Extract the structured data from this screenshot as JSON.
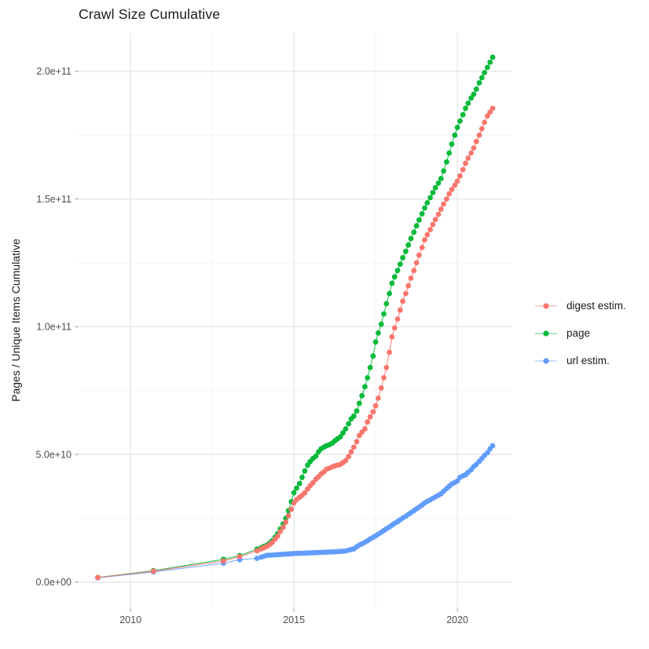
{
  "chart_data": {
    "type": "scatter",
    "title": "Crawl Size Cumulative",
    "xlabel": "",
    "ylabel": "Pages / Unique Items Cumulative",
    "legend_position": "right",
    "grid": true,
    "value_unit": "items x 1e9 (y values below are billions)",
    "x_domain": [
      2008.41,
      2021.68
    ],
    "y_domain_e9": [
      -10.2,
      215
    ],
    "x_ticks": [
      {
        "value": 2010,
        "label": "2010"
      },
      {
        "value": 2015,
        "label": "2015"
      },
      {
        "value": 2020,
        "label": "2020"
      }
    ],
    "x_minor_ticks": [
      2012.5,
      2017.5
    ],
    "y_ticks": [
      {
        "value_e9": 0,
        "label": "0.0e+00"
      },
      {
        "value_e9": 50,
        "label": "5.0e+10"
      },
      {
        "value_e9": 100,
        "label": "1.0e+11"
      },
      {
        "value_e9": 150,
        "label": "1.5e+11"
      },
      {
        "value_e9": 200,
        "label": "2.0e+11"
      }
    ],
    "y_minor_ticks_e9": [
      25,
      75,
      125,
      175
    ],
    "series": [
      {
        "name": "digest estim.",
        "color": "#F8766D",
        "points": [
          [
            2009.0,
            1.8
          ],
          [
            2010.7,
            4.3
          ],
          [
            2012.84,
            8.3
          ],
          [
            2013.34,
            10.0
          ],
          [
            2013.87,
            12.3
          ],
          [
            2014.0,
            13.0
          ],
          [
            2014.08,
            13.5
          ],
          [
            2014.17,
            14.0
          ],
          [
            2014.25,
            14.7
          ],
          [
            2014.33,
            15.5
          ],
          [
            2014.42,
            16.8
          ],
          [
            2014.5,
            18.0
          ],
          [
            2014.58,
            19.8
          ],
          [
            2014.67,
            21.5
          ],
          [
            2014.75,
            23.5
          ],
          [
            2014.83,
            26.0
          ],
          [
            2014.92,
            28.5
          ],
          [
            2015.0,
            31.0
          ],
          [
            2015.08,
            32.3
          ],
          [
            2015.17,
            33.2
          ],
          [
            2015.25,
            34.0
          ],
          [
            2015.33,
            35.0
          ],
          [
            2015.42,
            36.5
          ],
          [
            2015.5,
            37.8
          ],
          [
            2015.58,
            38.9
          ],
          [
            2015.67,
            40.3
          ],
          [
            2015.75,
            41.2
          ],
          [
            2015.83,
            42.4
          ],
          [
            2015.92,
            43.2
          ],
          [
            2016.0,
            44.2
          ],
          [
            2016.08,
            44.6
          ],
          [
            2016.17,
            45.1
          ],
          [
            2016.25,
            45.5
          ],
          [
            2016.33,
            45.8
          ],
          [
            2016.42,
            46.1
          ],
          [
            2016.5,
            46.8
          ],
          [
            2016.58,
            47.6
          ],
          [
            2016.67,
            49.2
          ],
          [
            2016.75,
            51.0
          ],
          [
            2016.83,
            52.8
          ],
          [
            2016.92,
            55.0
          ],
          [
            2017.0,
            57.4
          ],
          [
            2017.08,
            58.7
          ],
          [
            2017.17,
            60.0
          ],
          [
            2017.25,
            62.7
          ],
          [
            2017.33,
            64.7
          ],
          [
            2017.42,
            66.7
          ],
          [
            2017.5,
            69.0
          ],
          [
            2017.58,
            72.0
          ],
          [
            2017.67,
            76.0
          ],
          [
            2017.75,
            80.0
          ],
          [
            2017.83,
            84.0
          ],
          [
            2017.92,
            90.0
          ],
          [
            2018.0,
            96.0
          ],
          [
            2018.08,
            99.5
          ],
          [
            2018.17,
            103.0
          ],
          [
            2018.25,
            106.5
          ],
          [
            2018.33,
            110.0
          ],
          [
            2018.42,
            113.0
          ],
          [
            2018.5,
            116.0
          ],
          [
            2018.58,
            119.0
          ],
          [
            2018.67,
            122.0
          ],
          [
            2018.75,
            125.0
          ],
          [
            2018.83,
            128.0
          ],
          [
            2018.92,
            131.0
          ],
          [
            2019.0,
            134.0
          ],
          [
            2019.08,
            136.0
          ],
          [
            2019.17,
            138.0
          ],
          [
            2019.25,
            140.0
          ],
          [
            2019.33,
            142.0
          ],
          [
            2019.42,
            144.0
          ],
          [
            2019.5,
            146.0
          ],
          [
            2019.58,
            148.0
          ],
          [
            2019.67,
            150.0
          ],
          [
            2019.75,
            152.0
          ],
          [
            2019.83,
            153.7
          ],
          [
            2019.92,
            155.4
          ],
          [
            2020.0,
            157.0
          ],
          [
            2020.08,
            159.0
          ],
          [
            2020.17,
            161.5
          ],
          [
            2020.25,
            164.0
          ],
          [
            2020.33,
            166.0
          ],
          [
            2020.42,
            168.0
          ],
          [
            2020.5,
            170.0
          ],
          [
            2020.58,
            172.5
          ],
          [
            2020.67,
            175.0
          ],
          [
            2020.75,
            177.5
          ],
          [
            2020.83,
            180.0
          ],
          [
            2020.92,
            182.5
          ],
          [
            2021.0,
            184.0
          ],
          [
            2021.08,
            185.5
          ]
        ]
      },
      {
        "name": "page",
        "color": "#00BA38",
        "points": [
          [
            2009.0,
            1.8
          ],
          [
            2010.7,
            4.5
          ],
          [
            2012.84,
            8.9
          ],
          [
            2013.34,
            10.4
          ],
          [
            2013.87,
            12.9
          ],
          [
            2014.0,
            13.5
          ],
          [
            2014.08,
            14.0
          ],
          [
            2014.17,
            14.5
          ],
          [
            2014.25,
            15.2
          ],
          [
            2014.33,
            16.2
          ],
          [
            2014.42,
            17.6
          ],
          [
            2014.5,
            19.0
          ],
          [
            2014.58,
            20.8
          ],
          [
            2014.67,
            22.8
          ],
          [
            2014.75,
            25.0
          ],
          [
            2014.83,
            28.0
          ],
          [
            2014.92,
            31.5
          ],
          [
            2015.0,
            35.0
          ],
          [
            2015.08,
            36.8
          ],
          [
            2015.17,
            38.6
          ],
          [
            2015.25,
            41.0
          ],
          [
            2015.33,
            43.5
          ],
          [
            2015.42,
            45.8
          ],
          [
            2015.5,
            47.2
          ],
          [
            2015.58,
            48.4
          ],
          [
            2015.67,
            49.3
          ],
          [
            2015.75,
            51.0
          ],
          [
            2015.83,
            52.2
          ],
          [
            2015.92,
            52.9
          ],
          [
            2016.0,
            53.4
          ],
          [
            2016.08,
            53.8
          ],
          [
            2016.17,
            54.4
          ],
          [
            2016.25,
            55.3
          ],
          [
            2016.33,
            56.1
          ],
          [
            2016.42,
            56.9
          ],
          [
            2016.5,
            58.4
          ],
          [
            2016.58,
            60.0
          ],
          [
            2016.67,
            62.0
          ],
          [
            2016.75,
            63.9
          ],
          [
            2016.83,
            65.0
          ],
          [
            2016.92,
            67.0
          ],
          [
            2017.0,
            70.0
          ],
          [
            2017.08,
            73.0
          ],
          [
            2017.17,
            76.5
          ],
          [
            2017.25,
            80.0
          ],
          [
            2017.33,
            84.0
          ],
          [
            2017.42,
            88.5
          ],
          [
            2017.5,
            94.0
          ],
          [
            2017.58,
            97.5
          ],
          [
            2017.67,
            101.0
          ],
          [
            2017.75,
            105.0
          ],
          [
            2017.83,
            109.0
          ],
          [
            2017.92,
            113.0
          ],
          [
            2018.0,
            117.0
          ],
          [
            2018.08,
            119.5
          ],
          [
            2018.17,
            122.0
          ],
          [
            2018.25,
            124.5
          ],
          [
            2018.33,
            127.0
          ],
          [
            2018.42,
            129.5
          ],
          [
            2018.5,
            132.0
          ],
          [
            2018.58,
            134.5
          ],
          [
            2018.67,
            137.0
          ],
          [
            2018.75,
            139.5
          ],
          [
            2018.83,
            141.8
          ],
          [
            2018.92,
            144.2
          ],
          [
            2019.0,
            146.5
          ],
          [
            2019.08,
            148.5
          ],
          [
            2019.17,
            150.5
          ],
          [
            2019.25,
            152.5
          ],
          [
            2019.33,
            154.4
          ],
          [
            2019.42,
            156.2
          ],
          [
            2019.5,
            158.0
          ],
          [
            2019.58,
            161.0
          ],
          [
            2019.67,
            164.5
          ],
          [
            2019.75,
            168.0
          ],
          [
            2019.83,
            171.5
          ],
          [
            2019.92,
            175.0
          ],
          [
            2020.0,
            178.0
          ],
          [
            2020.08,
            180.5
          ],
          [
            2020.17,
            183.0
          ],
          [
            2020.25,
            185.5
          ],
          [
            2020.33,
            187.5
          ],
          [
            2020.42,
            189.5
          ],
          [
            2020.5,
            191.0
          ],
          [
            2020.58,
            193.0
          ],
          [
            2020.67,
            195.5
          ],
          [
            2020.75,
            197.5
          ],
          [
            2020.83,
            199.5
          ],
          [
            2020.92,
            201.5
          ],
          [
            2021.0,
            203.5
          ],
          [
            2021.08,
            205.5
          ]
        ]
      },
      {
        "name": "url estim.",
        "color": "#619CFF",
        "points": [
          [
            2009.0,
            1.7
          ],
          [
            2010.7,
            4.0
          ],
          [
            2012.84,
            7.4
          ],
          [
            2013.34,
            8.8
          ],
          [
            2013.87,
            9.3
          ],
          [
            2014.0,
            9.8
          ],
          [
            2014.08,
            10.1
          ],
          [
            2014.17,
            10.5
          ],
          [
            2014.25,
            10.55
          ],
          [
            2014.33,
            10.6
          ],
          [
            2014.42,
            10.7
          ],
          [
            2014.5,
            10.75
          ],
          [
            2014.58,
            10.85
          ],
          [
            2014.67,
            10.9
          ],
          [
            2014.75,
            11.0
          ],
          [
            2014.83,
            11.05
          ],
          [
            2014.92,
            11.1
          ],
          [
            2015.0,
            11.2
          ],
          [
            2015.08,
            11.25
          ],
          [
            2015.17,
            11.3
          ],
          [
            2015.25,
            11.3
          ],
          [
            2015.33,
            11.35
          ],
          [
            2015.42,
            11.4
          ],
          [
            2015.5,
            11.45
          ],
          [
            2015.58,
            11.5
          ],
          [
            2015.67,
            11.55
          ],
          [
            2015.75,
            11.6
          ],
          [
            2015.83,
            11.65
          ],
          [
            2015.92,
            11.7
          ],
          [
            2016.0,
            11.75
          ],
          [
            2016.08,
            11.8
          ],
          [
            2016.17,
            11.85
          ],
          [
            2016.25,
            11.9
          ],
          [
            2016.33,
            11.95
          ],
          [
            2016.42,
            12.0
          ],
          [
            2016.5,
            12.1
          ],
          [
            2016.58,
            12.2
          ],
          [
            2016.67,
            12.5
          ],
          [
            2016.75,
            12.8
          ],
          [
            2016.83,
            13.0
          ],
          [
            2016.92,
            13.9
          ],
          [
            2017.0,
            14.5
          ],
          [
            2017.08,
            15.0
          ],
          [
            2017.17,
            15.6
          ],
          [
            2017.25,
            16.2
          ],
          [
            2017.33,
            16.9
          ],
          [
            2017.42,
            17.5
          ],
          [
            2017.5,
            18.1
          ],
          [
            2017.58,
            18.8
          ],
          [
            2017.67,
            19.5
          ],
          [
            2017.75,
            20.2
          ],
          [
            2017.83,
            20.9
          ],
          [
            2017.92,
            21.6
          ],
          [
            2018.0,
            22.3
          ],
          [
            2018.08,
            23.0
          ],
          [
            2018.17,
            23.7
          ],
          [
            2018.25,
            24.4
          ],
          [
            2018.33,
            25.1
          ],
          [
            2018.42,
            25.8
          ],
          [
            2018.5,
            26.5
          ],
          [
            2018.58,
            27.2
          ],
          [
            2018.67,
            28.0
          ],
          [
            2018.75,
            28.7
          ],
          [
            2018.83,
            29.4
          ],
          [
            2018.92,
            30.2
          ],
          [
            2019.0,
            31.0
          ],
          [
            2019.08,
            31.6
          ],
          [
            2019.17,
            32.2
          ],
          [
            2019.25,
            32.8
          ],
          [
            2019.33,
            33.4
          ],
          [
            2019.42,
            34.0
          ],
          [
            2019.5,
            34.6
          ],
          [
            2019.58,
            35.6
          ],
          [
            2019.67,
            36.6
          ],
          [
            2019.75,
            37.5
          ],
          [
            2019.83,
            38.4
          ],
          [
            2019.92,
            39.0
          ],
          [
            2020.0,
            39.6
          ],
          [
            2020.08,
            41.0
          ],
          [
            2020.17,
            41.6
          ],
          [
            2020.25,
            42.1
          ],
          [
            2020.33,
            43.0
          ],
          [
            2020.42,
            44.0
          ],
          [
            2020.5,
            45.2
          ],
          [
            2020.58,
            46.1
          ],
          [
            2020.67,
            47.3
          ],
          [
            2020.75,
            48.4
          ],
          [
            2020.83,
            49.6
          ],
          [
            2020.92,
            50.7
          ],
          [
            2021.0,
            52.2
          ],
          [
            2021.08,
            53.4
          ]
        ]
      }
    ],
    "colors": {
      "grid_major": "#E6E6E6",
      "grid_minor": "#F2F2F2",
      "tick_mark": "#9B9B9B",
      "tick_text": "#4d4d4d"
    }
  }
}
